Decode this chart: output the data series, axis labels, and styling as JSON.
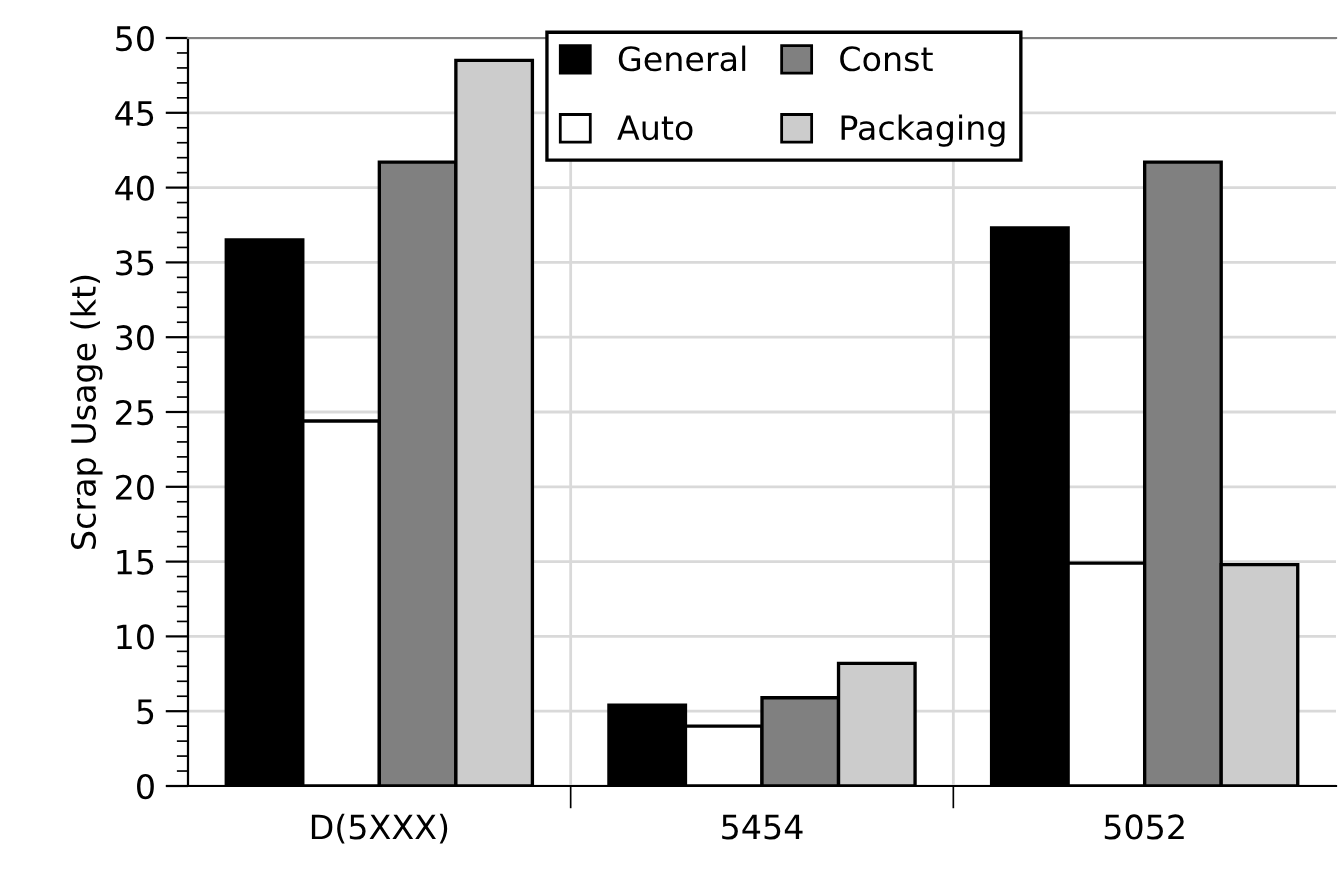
{
  "chart_data": {
    "type": "bar",
    "ylabel": "Scrap Usage (kt)",
    "categories": [
      "D(5XXX)",
      "5454",
      "5052"
    ],
    "series": [
      {
        "name": "General",
        "color": "#000000",
        "values": [
          36.5,
          5.4,
          37.3
        ]
      },
      {
        "name": "Auto",
        "color": "#ffffff",
        "values": [
          24.4,
          4.0,
          14.9
        ]
      },
      {
        "name": "Const",
        "color": "#808080",
        "values": [
          41.7,
          5.9,
          41.7
        ]
      },
      {
        "name": "Packaging",
        "color": "#cccccc",
        "values": [
          48.5,
          8.2,
          14.8
        ]
      }
    ],
    "ylim": [
      0,
      50
    ],
    "yticks": [
      0,
      5,
      10,
      15,
      20,
      25,
      30,
      35,
      40,
      45,
      50
    ],
    "grid": true,
    "legend": "top right"
  }
}
